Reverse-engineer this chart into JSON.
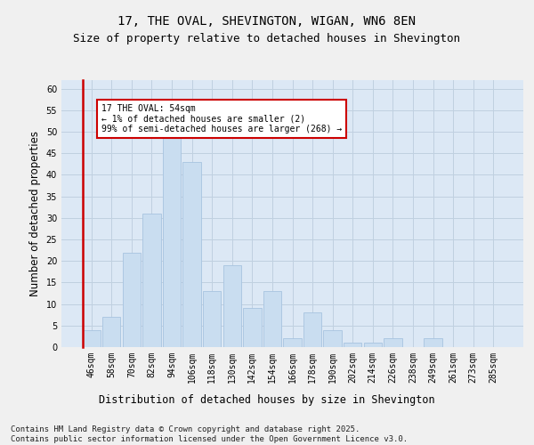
{
  "title1": "17, THE OVAL, SHEVINGTON, WIGAN, WN6 8EN",
  "title2": "Size of property relative to detached houses in Shevington",
  "xlabel": "Distribution of detached houses by size in Shevington",
  "ylabel": "Number of detached properties",
  "categories": [
    "46sqm",
    "58sqm",
    "70sqm",
    "82sqm",
    "94sqm",
    "106sqm",
    "118sqm",
    "130sqm",
    "142sqm",
    "154sqm",
    "166sqm",
    "178sqm",
    "190sqm",
    "202sqm",
    "214sqm",
    "226sqm",
    "238sqm",
    "249sqm",
    "261sqm",
    "273sqm",
    "285sqm"
  ],
  "values": [
    4,
    7,
    22,
    31,
    50,
    43,
    13,
    19,
    9,
    13,
    2,
    8,
    4,
    1,
    1,
    2,
    0,
    2,
    0,
    0,
    0
  ],
  "bar_color": "#c9ddf0",
  "bar_edge_color": "#a8c4e0",
  "highlight_line_color": "#cc0000",
  "annotation_text": "17 THE OVAL: 54sqm\n← 1% of detached houses are smaller (2)\n99% of semi-detached houses are larger (268) →",
  "annotation_box_color": "#ffffff",
  "annotation_box_edge_color": "#cc0000",
  "ylim": [
    0,
    62
  ],
  "yticks": [
    0,
    5,
    10,
    15,
    20,
    25,
    30,
    35,
    40,
    45,
    50,
    55,
    60
  ],
  "grid_color": "#c0d0e0",
  "background_color": "#dce8f5",
  "fig_background": "#f0f0f0",
  "footer": "Contains HM Land Registry data © Crown copyright and database right 2025.\nContains public sector information licensed under the Open Government Licence v3.0.",
  "title_fontsize": 10,
  "subtitle_fontsize": 9,
  "tick_fontsize": 7,
  "label_fontsize": 8.5,
  "footer_fontsize": 6.5
}
